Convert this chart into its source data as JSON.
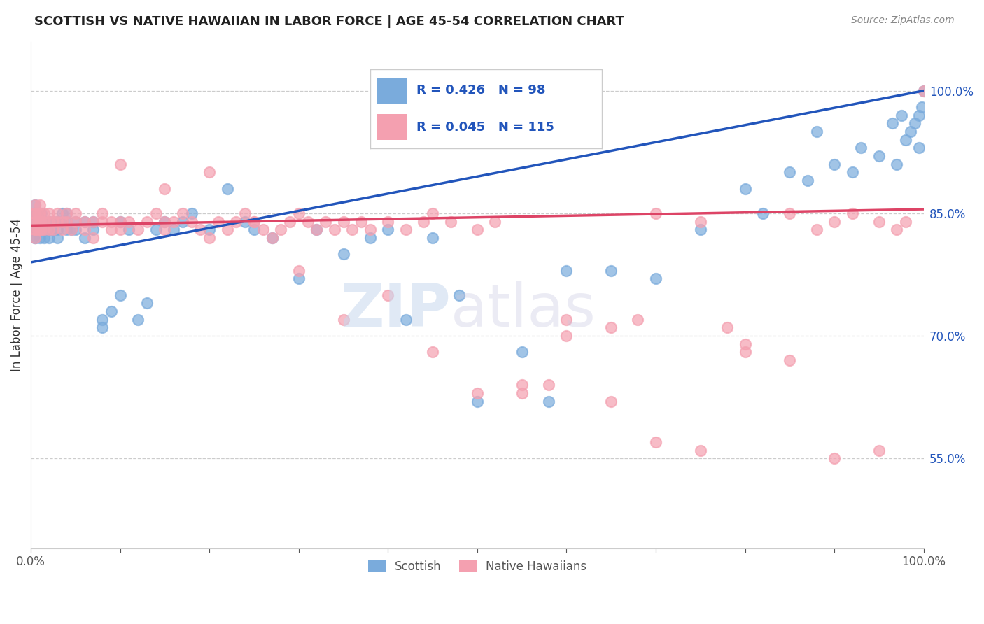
{
  "title": "SCOTTISH VS NATIVE HAWAIIAN IN LABOR FORCE | AGE 45-54 CORRELATION CHART",
  "source": "Source: ZipAtlas.com",
  "ylabel": "In Labor Force | Age 45-54",
  "xlim": [
    0.0,
    1.0
  ],
  "ylim": [
    0.44,
    1.06
  ],
  "x_tick_pos": [
    0.0,
    0.1,
    0.2,
    0.3,
    0.4,
    0.5,
    0.6,
    0.7,
    0.8,
    0.9,
    1.0
  ],
  "x_tick_labels": [
    "0.0%",
    "",
    "",
    "",
    "",
    "",
    "",
    "",
    "",
    "",
    "100.0%"
  ],
  "y_tick_labels_right": [
    "55.0%",
    "70.0%",
    "85.0%",
    "100.0%"
  ],
  "y_tick_values_right": [
    0.55,
    0.7,
    0.85,
    1.0
  ],
  "scottish_color": "#7aabdc",
  "native_hawaiian_color": "#f4a0b0",
  "trend_blue": "#2255bb",
  "trend_pink": "#dd4466",
  "R_scottish": 0.426,
  "N_scottish": 98,
  "R_native": 0.045,
  "N_native": 115,
  "legend_label_1": "Scottish",
  "legend_label_2": "Native Hawaiians",
  "scottish_x": [
    0.005,
    0.005,
    0.005,
    0.005,
    0.005,
    0.005,
    0.005,
    0.005,
    0.005,
    0.005,
    0.008,
    0.008,
    0.008,
    0.008,
    0.008,
    0.01,
    0.01,
    0.01,
    0.01,
    0.01,
    0.012,
    0.012,
    0.012,
    0.015,
    0.015,
    0.015,
    0.02,
    0.02,
    0.02,
    0.025,
    0.025,
    0.03,
    0.03,
    0.03,
    0.035,
    0.035,
    0.04,
    0.04,
    0.04,
    0.045,
    0.05,
    0.05,
    0.06,
    0.06,
    0.07,
    0.07,
    0.08,
    0.08,
    0.09,
    0.1,
    0.1,
    0.11,
    0.12,
    0.13,
    0.14,
    0.15,
    0.16,
    0.17,
    0.18,
    0.2,
    0.22,
    0.24,
    0.25,
    0.27,
    0.3,
    0.32,
    0.35,
    0.38,
    0.4,
    0.42,
    0.45,
    0.48,
    0.5,
    0.55,
    0.58,
    0.6,
    0.65,
    0.7,
    0.75,
    0.8,
    0.82,
    0.85,
    0.87,
    0.88,
    0.9,
    0.92,
    0.93,
    0.95,
    0.97,
    0.98,
    0.99,
    0.995,
    0.998,
    1.0,
    0.995,
    0.985,
    0.975,
    0.965
  ],
  "scottish_y": [
    0.83,
    0.84,
    0.85,
    0.82,
    0.86,
    0.83,
    0.84,
    0.83,
    0.85,
    0.82,
    0.84,
    0.83,
    0.85,
    0.84,
    0.83,
    0.84,
    0.85,
    0.83,
    0.82,
    0.84,
    0.83,
    0.85,
    0.84,
    0.84,
    0.83,
    0.82,
    0.84,
    0.83,
    0.82,
    0.84,
    0.83,
    0.84,
    0.83,
    0.82,
    0.85,
    0.84,
    0.83,
    0.85,
    0.84,
    0.83,
    0.84,
    0.83,
    0.82,
    0.84,
    0.83,
    0.84,
    0.72,
    0.71,
    0.73,
    0.75,
    0.84,
    0.83,
    0.72,
    0.74,
    0.83,
    0.84,
    0.83,
    0.84,
    0.85,
    0.83,
    0.88,
    0.84,
    0.83,
    0.82,
    0.77,
    0.83,
    0.8,
    0.82,
    0.83,
    0.72,
    0.82,
    0.75,
    0.62,
    0.68,
    0.62,
    0.78,
    0.78,
    0.77,
    0.83,
    0.88,
    0.85,
    0.9,
    0.89,
    0.95,
    0.91,
    0.9,
    0.93,
    0.92,
    0.91,
    0.94,
    0.96,
    0.97,
    0.98,
    1.0,
    0.93,
    0.95,
    0.97,
    0.96
  ],
  "native_x": [
    0.005,
    0.005,
    0.005,
    0.005,
    0.005,
    0.005,
    0.005,
    0.005,
    0.008,
    0.008,
    0.008,
    0.01,
    0.01,
    0.01,
    0.01,
    0.012,
    0.012,
    0.015,
    0.015,
    0.015,
    0.02,
    0.02,
    0.02,
    0.025,
    0.025,
    0.03,
    0.03,
    0.035,
    0.035,
    0.04,
    0.04,
    0.045,
    0.05,
    0.05,
    0.06,
    0.06,
    0.07,
    0.07,
    0.08,
    0.08,
    0.09,
    0.09,
    0.1,
    0.1,
    0.11,
    0.12,
    0.13,
    0.14,
    0.15,
    0.15,
    0.16,
    0.17,
    0.18,
    0.19,
    0.2,
    0.21,
    0.22,
    0.23,
    0.24,
    0.25,
    0.26,
    0.27,
    0.28,
    0.29,
    0.3,
    0.31,
    0.32,
    0.33,
    0.34,
    0.35,
    0.36,
    0.37,
    0.38,
    0.4,
    0.42,
    0.44,
    0.45,
    0.47,
    0.5,
    0.52,
    0.55,
    0.58,
    0.6,
    0.65,
    0.68,
    0.7,
    0.75,
    0.78,
    0.8,
    0.85,
    0.88,
    0.9,
    0.92,
    0.95,
    0.97,
    0.98,
    1.0,
    0.15,
    0.2,
    0.25,
    0.3,
    0.35,
    0.4,
    0.45,
    0.5,
    0.55,
    0.6,
    0.65,
    0.7,
    0.75,
    0.8,
    0.85,
    0.9,
    0.95,
    0.1
  ],
  "native_y": [
    0.84,
    0.85,
    0.83,
    0.82,
    0.86,
    0.83,
    0.84,
    0.85,
    0.84,
    0.85,
    0.83,
    0.84,
    0.85,
    0.83,
    0.86,
    0.84,
    0.83,
    0.84,
    0.85,
    0.83,
    0.84,
    0.83,
    0.85,
    0.84,
    0.83,
    0.84,
    0.85,
    0.84,
    0.83,
    0.85,
    0.84,
    0.83,
    0.84,
    0.85,
    0.84,
    0.83,
    0.82,
    0.84,
    0.84,
    0.85,
    0.84,
    0.83,
    0.84,
    0.83,
    0.84,
    0.83,
    0.84,
    0.85,
    0.84,
    0.83,
    0.84,
    0.85,
    0.84,
    0.83,
    0.82,
    0.84,
    0.83,
    0.84,
    0.85,
    0.84,
    0.83,
    0.82,
    0.83,
    0.84,
    0.85,
    0.84,
    0.83,
    0.84,
    0.83,
    0.84,
    0.83,
    0.84,
    0.83,
    0.84,
    0.83,
    0.84,
    0.85,
    0.84,
    0.83,
    0.84,
    0.63,
    0.64,
    0.7,
    0.71,
    0.72,
    0.85,
    0.84,
    0.71,
    0.68,
    0.85,
    0.83,
    0.84,
    0.85,
    0.84,
    0.83,
    0.84,
    1.0,
    0.88,
    0.9,
    0.84,
    0.78,
    0.72,
    0.75,
    0.68,
    0.63,
    0.64,
    0.72,
    0.62,
    0.57,
    0.56,
    0.69,
    0.67,
    0.55,
    0.56,
    0.91
  ]
}
